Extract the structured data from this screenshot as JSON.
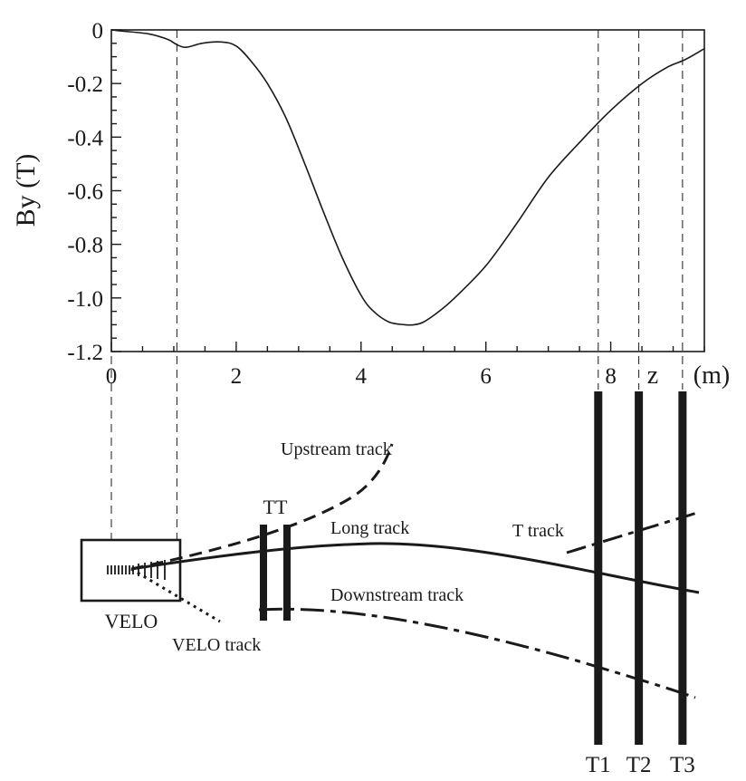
{
  "chart_data": {
    "type": "line",
    "ylabel": "By (T)",
    "xlabel": "z",
    "xunit": "(m)",
    "xlim": [
      0,
      9.5
    ],
    "ylim": [
      -1.2,
      0
    ],
    "x_ticks": [
      {
        "value": 0,
        "label": "0"
      },
      {
        "value": 2,
        "label": "2"
      },
      {
        "value": 4,
        "label": "4"
      },
      {
        "value": 6,
        "label": "6"
      },
      {
        "value": 8,
        "label": "8"
      }
    ],
    "y_ticks": [
      {
        "value": 0,
        "label": "0"
      },
      {
        "value": -0.2,
        "label": "-0.2"
      },
      {
        "value": -0.4,
        "label": "-0.4"
      },
      {
        "value": -0.6,
        "label": "-0.6"
      },
      {
        "value": -0.8,
        "label": "-0.8"
      },
      {
        "value": -1.0,
        "label": "-1.0"
      },
      {
        "value": -1.2,
        "label": "-1.2"
      }
    ],
    "series": [
      {
        "name": "By",
        "x": [
          0,
          0.2,
          0.6,
          0.9,
          1.05,
          1.2,
          1.45,
          1.75,
          2.0,
          2.25,
          2.5,
          2.8,
          3.1,
          3.4,
          3.7,
          4.0,
          4.2,
          4.45,
          4.7,
          4.85,
          5.0,
          5.25,
          5.5,
          6.0,
          6.5,
          7.0,
          7.5,
          8.0,
          8.5,
          8.9,
          9.2,
          9.5
        ],
        "y": [
          0.0,
          -0.005,
          -0.015,
          -0.035,
          -0.055,
          -0.065,
          -0.05,
          -0.045,
          -0.06,
          -0.12,
          -0.2,
          -0.33,
          -0.5,
          -0.68,
          -0.85,
          -0.99,
          -1.05,
          -1.09,
          -1.1,
          -1.1,
          -1.09,
          -1.05,
          -1.0,
          -0.88,
          -0.72,
          -0.55,
          -0.42,
          -0.3,
          -0.2,
          -0.14,
          -0.11,
          -0.07
        ]
      }
    ]
  },
  "reference_lines_z": [
    0,
    1.05,
    7.8,
    8.45,
    9.15
  ],
  "diagram": {
    "velo_label": "VELO",
    "tt_label": "TT",
    "stations": [
      {
        "id": "T1",
        "label": "T1",
        "z": 7.8
      },
      {
        "id": "T2",
        "label": "T2",
        "z": 8.45
      },
      {
        "id": "T3",
        "label": "T3",
        "z": 9.15
      }
    ],
    "tracks": {
      "upstream": "Upstream track",
      "long": "Long track",
      "t_track": "T track",
      "downstream": "Downstream track",
      "velo": "VELO track"
    }
  }
}
